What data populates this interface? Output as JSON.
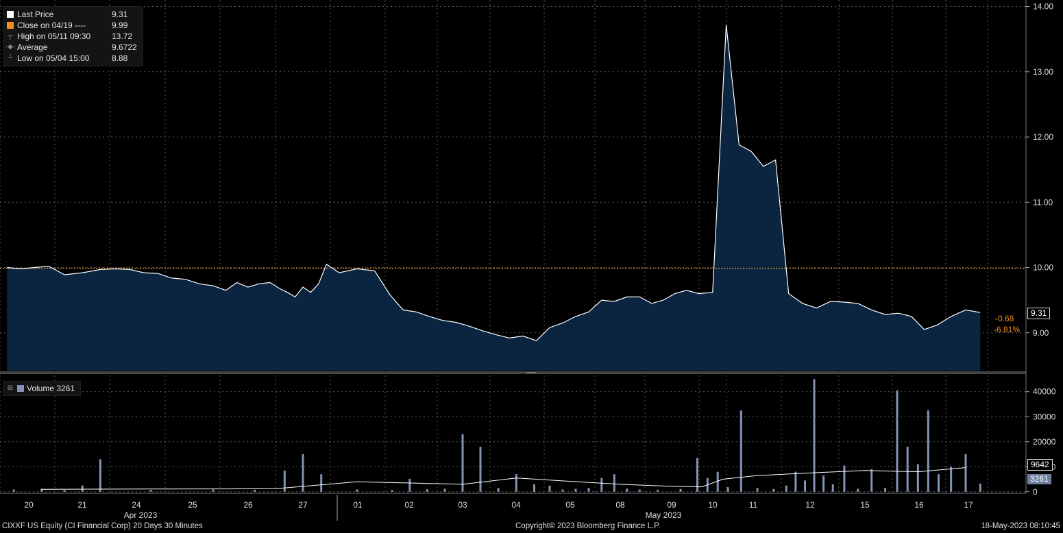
{
  "colors": {
    "price_line": "#ffffff",
    "area_fill": "#0b2540",
    "close_line": "#f0901c",
    "volume_bars": "#8394b6",
    "average_line": "#ffffff",
    "grid": "#5a5a5a"
  },
  "legend": {
    "items": [
      {
        "icon": "white-square-icon",
        "label": "Last Price",
        "value": "9.31"
      },
      {
        "icon": "orange-square-icon",
        "label": "Close on 04/19 ----",
        "value": "9.99"
      },
      {
        "icon": "high-marker-icon",
        "label": "High on 05/11 09:30",
        "value": "13.72"
      },
      {
        "icon": "average-marker-icon",
        "label": "Average",
        "value": "9.6722"
      },
      {
        "icon": "low-marker-icon",
        "label": "Low on 05/04 15:00",
        "value": "8.88"
      }
    ]
  },
  "volume_legend": {
    "icon": "volume-square-icon",
    "label": "Volume",
    "value": "3261"
  },
  "price_tags": {
    "last": "9.31",
    "change": "-0.68",
    "change_pct": "-6.81%"
  },
  "volume_tags": {
    "average": "9642",
    "last": "3261"
  },
  "footer": {
    "left": "CIXXF US Equity (CI Financial Corp) 20 Days 30 Minutes",
    "center": "Copyright© 2023 Bloomberg Finance L.P.",
    "right": "18-May-2023 08:10:45"
  },
  "chart_data": {
    "type": "line",
    "interval": "30 Minutes",
    "x_day_labels": [
      "20",
      "21",
      "24",
      "25",
      "26",
      "27",
      "01",
      "02",
      "03",
      "04",
      "05",
      "08",
      "09",
      "10",
      "11",
      "12",
      "15",
      "16",
      "17"
    ],
    "x_month_labels": [
      "Apr 2023",
      "May 2023"
    ],
    "price": {
      "series_name": "Last Price",
      "close_reference": 9.99,
      "ylim": [
        8.42,
        14.1
      ],
      "yticks": [
        9.0,
        10.0,
        11.0,
        12.0,
        13.0,
        14.0
      ],
      "points": [
        [
          "20",
          10.0
        ],
        [
          "20",
          9.98
        ],
        [
          "20",
          10.0
        ],
        [
          "20",
          10.02
        ],
        [
          "21",
          9.89
        ],
        [
          "21",
          9.92
        ],
        [
          "21",
          9.97
        ],
        [
          "24",
          9.98
        ],
        [
          "24",
          9.97
        ],
        [
          "24",
          9.92
        ],
        [
          "24",
          9.91
        ],
        [
          "25",
          9.84
        ],
        [
          "25",
          9.82
        ],
        [
          "25",
          9.75
        ],
        [
          "25",
          9.72
        ],
        [
          "26",
          9.65
        ],
        [
          "26",
          9.77
        ],
        [
          "26",
          9.7
        ],
        [
          "26",
          9.75
        ],
        [
          "26",
          9.77
        ],
        [
          "27",
          9.68
        ],
        [
          "27",
          9.62
        ],
        [
          "27",
          9.55
        ],
        [
          "27",
          9.7
        ],
        [
          "27",
          9.62
        ],
        [
          "27",
          9.75
        ],
        [
          "27",
          10.05
        ],
        [
          "01",
          9.92
        ],
        [
          "01",
          9.98
        ],
        [
          "01",
          9.95
        ],
        [
          "02",
          9.58
        ],
        [
          "02",
          9.35
        ],
        [
          "02",
          9.32
        ],
        [
          "02",
          9.25
        ],
        [
          "03",
          9.19
        ],
        [
          "03",
          9.16
        ],
        [
          "03",
          9.1
        ],
        [
          "03",
          9.03
        ],
        [
          "04",
          8.97
        ],
        [
          "04",
          8.92
        ],
        [
          "04",
          8.95
        ],
        [
          "04",
          8.88
        ],
        [
          "05",
          9.08
        ],
        [
          "05",
          9.15
        ],
        [
          "05",
          9.25
        ],
        [
          "05",
          9.32
        ],
        [
          "08",
          9.5
        ],
        [
          "08",
          9.48
        ],
        [
          "08",
          9.55
        ],
        [
          "08",
          9.55
        ],
        [
          "09",
          9.45
        ],
        [
          "09",
          9.5
        ],
        [
          "09",
          9.6
        ],
        [
          "09",
          9.65
        ],
        [
          "10",
          9.6
        ],
        [
          "10",
          9.62
        ],
        [
          "10",
          13.72
        ],
        [
          "11",
          11.88
        ],
        [
          "11",
          11.78
        ],
        [
          "11",
          11.55
        ],
        [
          "11",
          11.65
        ],
        [
          "12",
          9.6
        ],
        [
          "12",
          9.45
        ],
        [
          "12",
          9.38
        ],
        [
          "12",
          9.48
        ],
        [
          "15",
          9.47
        ],
        [
          "15",
          9.45
        ],
        [
          "15",
          9.35
        ],
        [
          "15",
          9.28
        ],
        [
          "16",
          9.3
        ],
        [
          "16",
          9.25
        ],
        [
          "16",
          9.05
        ],
        [
          "16",
          9.12
        ],
        [
          "17",
          9.25
        ],
        [
          "17",
          9.35
        ],
        [
          "17",
          9.31
        ]
      ]
    },
    "volume": {
      "series_name": "Volume",
      "ylim": [
        -600,
        46500
      ],
      "yticks": [
        0,
        10000,
        20000,
        30000,
        40000
      ],
      "bars": [
        [
          "20",
          900
        ],
        [
          "20",
          1200
        ],
        [
          "21",
          700
        ],
        [
          "21",
          2500
        ],
        [
          "21",
          13000
        ],
        [
          "24",
          800
        ],
        [
          "26",
          900
        ],
        [
          "26",
          800
        ],
        [
          "27",
          8500
        ],
        [
          "27",
          15000
        ],
        [
          "27",
          7000
        ],
        [
          "01",
          900
        ],
        [
          "02",
          700
        ],
        [
          "02",
          5200
        ],
        [
          "02",
          1000
        ],
        [
          "03",
          1200
        ],
        [
          "03",
          23000
        ],
        [
          "03",
          18000
        ],
        [
          "04",
          1500
        ],
        [
          "04",
          7000
        ],
        [
          "04",
          3000
        ],
        [
          "05",
          2500
        ],
        [
          "05",
          900
        ],
        [
          "05",
          1200
        ],
        [
          "05",
          1500
        ],
        [
          "08",
          5500
        ],
        [
          "08",
          7000
        ],
        [
          "08",
          1300
        ],
        [
          "08",
          900
        ],
        [
          "09",
          800
        ],
        [
          "09",
          1100
        ],
        [
          "10",
          13500
        ],
        [
          "10",
          5500
        ],
        [
          "10",
          8000
        ],
        [
          "10",
          1800
        ],
        [
          "11",
          32500
        ],
        [
          "11",
          1500
        ],
        [
          "11",
          1100
        ],
        [
          "12",
          2500
        ],
        [
          "12",
          8000
        ],
        [
          "12",
          4500
        ],
        [
          "12",
          45000
        ],
        [
          "12",
          6500
        ],
        [
          "12",
          3000
        ],
        [
          "15",
          10500
        ],
        [
          "15",
          1200
        ],
        [
          "15",
          9000
        ],
        [
          "15",
          1500
        ],
        [
          "16",
          40500
        ],
        [
          "16",
          18000
        ],
        [
          "16",
          11000
        ],
        [
          "16",
          32500
        ],
        [
          "16",
          7000
        ],
        [
          "17",
          10000
        ],
        [
          "17",
          15000
        ],
        [
          "17",
          3261
        ]
      ],
      "average_points": [
        [
          "20",
          1000
        ],
        [
          "24",
          1100
        ],
        [
          "27",
          1200
        ],
        [
          "01",
          4000
        ],
        [
          "02",
          3500
        ],
        [
          "03",
          3000
        ],
        [
          "04",
          5500
        ],
        [
          "05",
          4200
        ],
        [
          "08",
          3000
        ],
        [
          "09",
          2200
        ],
        [
          "10",
          2000
        ],
        [
          "10",
          5000
        ],
        [
          "11",
          6500
        ],
        [
          "12",
          7500
        ],
        [
          "15",
          8500
        ],
        [
          "16",
          8000
        ],
        [
          "17",
          9642
        ]
      ]
    }
  }
}
